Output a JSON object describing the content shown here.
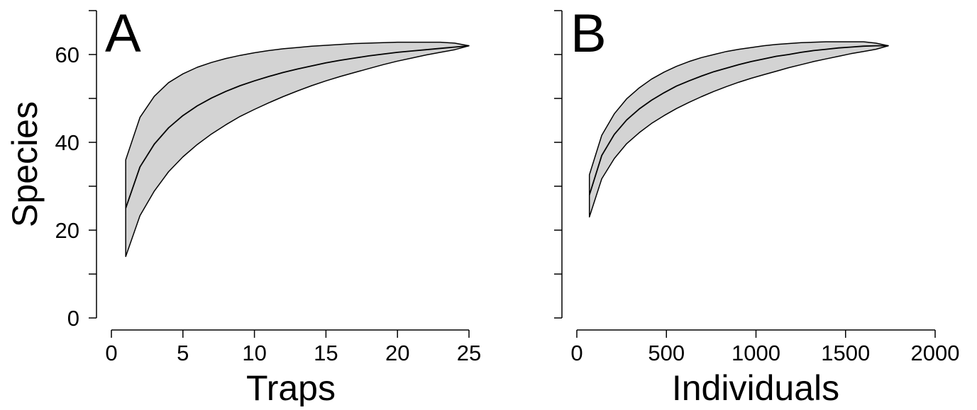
{
  "colors": {
    "band_fill": "#d3d3d3",
    "line": "#000000",
    "background": "#ffffff"
  },
  "y_axis": {
    "label": "Species",
    "ticks": [
      0,
      20,
      40,
      60
    ],
    "minor_ticks": [
      10,
      30,
      50,
      70
    ],
    "lim": [
      0,
      70
    ]
  },
  "chart_data": [
    {
      "type": "area",
      "panel_label": "A",
      "xlabel": "Traps",
      "ylabel": "Species",
      "xlim": [
        0,
        25
      ],
      "ylim": [
        0,
        70
      ],
      "xticks": [
        0,
        5,
        10,
        15,
        20,
        25
      ],
      "x": [
        1,
        2,
        3,
        4,
        5,
        6,
        7,
        8,
        9,
        10,
        11,
        12,
        13,
        14,
        15,
        16,
        17,
        18,
        19,
        20,
        21,
        22,
        23,
        24,
        25
      ],
      "series": [
        {
          "role": "upper",
          "values": [
            36,
            45.7,
            50.5,
            53.6,
            55.6,
            57.1,
            58.2,
            59.1,
            59.8,
            60.4,
            60.9,
            61.3,
            61.6,
            61.9,
            62.1,
            62.3,
            62.5,
            62.6,
            62.7,
            62.8,
            62.8,
            62.8,
            62.8,
            62.6,
            62
          ]
        },
        {
          "role": "mean",
          "values": [
            25,
            34.4,
            39.6,
            43.3,
            46.1,
            48.3,
            50.1,
            51.6,
            52.9,
            54.0,
            55.0,
            55.9,
            56.7,
            57.4,
            58.1,
            58.7,
            59.2,
            59.7,
            60.1,
            60.5,
            60.8,
            61.1,
            61.4,
            61.7,
            62
          ]
        },
        {
          "role": "lower",
          "values": [
            14,
            23.3,
            28.9,
            33.3,
            36.7,
            39.5,
            41.9,
            44.0,
            45.9,
            47.5,
            49.0,
            50.4,
            51.7,
            52.9,
            54.0,
            55.0,
            55.9,
            56.8,
            57.7,
            58.5,
            59.2,
            59.9,
            60.5,
            61.1,
            62
          ]
        }
      ]
    },
    {
      "type": "area",
      "panel_label": "B",
      "xlabel": "Individuals",
      "ylabel": "",
      "xlim": [
        0,
        2000
      ],
      "ylim": [
        0,
        70
      ],
      "xticks": [
        0,
        500,
        1000,
        1500,
        2000
      ],
      "x": [
        70,
        139,
        209,
        278,
        348,
        417,
        487,
        556,
        626,
        696,
        765,
        835,
        904,
        974,
        1043,
        1113,
        1182,
        1252,
        1322,
        1391,
        1461,
        1530,
        1600,
        1669,
        1739
      ],
      "series": [
        {
          "role": "upper",
          "values": [
            32.6,
            41.6,
            46.5,
            49.9,
            52.4,
            54.4,
            56.0,
            57.3,
            58.4,
            59.3,
            60.0,
            60.7,
            61.2,
            61.6,
            62.0,
            62.3,
            62.5,
            62.7,
            62.8,
            62.9,
            62.9,
            62.9,
            62.9,
            62.6,
            62
          ]
        },
        {
          "role": "mean",
          "values": [
            28,
            37.0,
            41.8,
            45.1,
            47.6,
            49.6,
            51.3,
            52.8,
            54.0,
            55.1,
            56.1,
            56.9,
            57.7,
            58.4,
            59.0,
            59.6,
            60.0,
            60.5,
            60.9,
            61.2,
            61.5,
            61.7,
            61.9,
            62.0,
            62
          ]
        },
        {
          "role": "lower",
          "values": [
            23,
            31.7,
            36.3,
            39.7,
            42.2,
            44.3,
            46.1,
            47.7,
            49.1,
            50.4,
            51.6,
            52.7,
            53.7,
            54.6,
            55.4,
            56.2,
            57.0,
            57.7,
            58.4,
            59.0,
            59.6,
            60.2,
            60.7,
            61.2,
            62
          ]
        }
      ]
    }
  ]
}
